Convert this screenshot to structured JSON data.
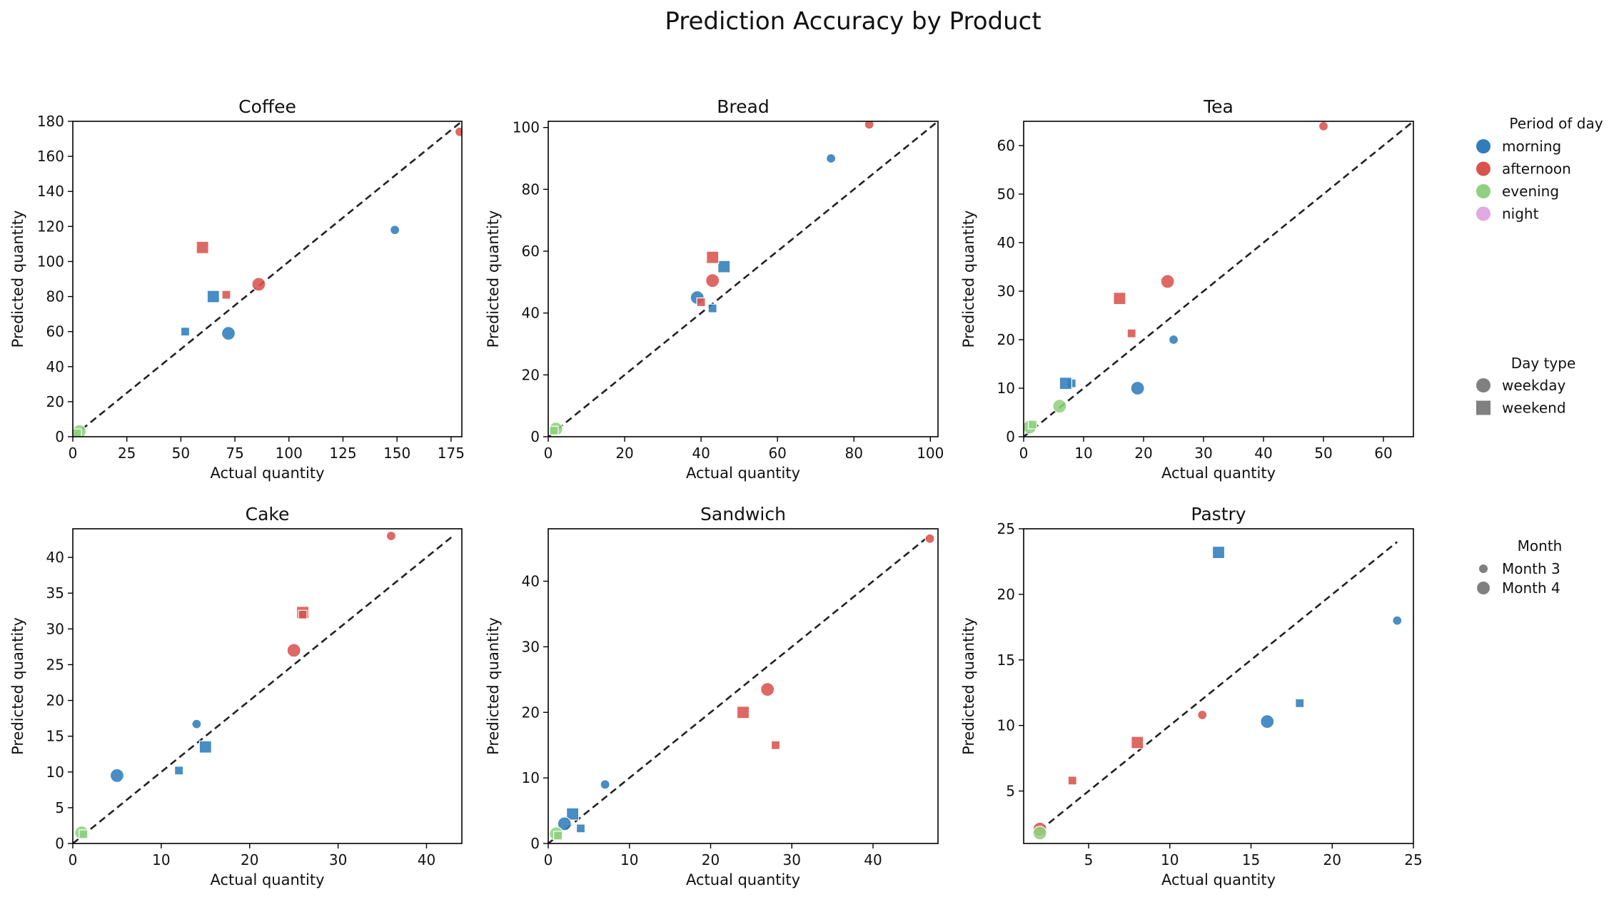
{
  "figure": {
    "title": "Prediction Accuracy by Product"
  },
  "legend": {
    "period": {
      "title": "Period of day",
      "items": [
        {
          "label": "morning",
          "color": "#2f7dbb"
        },
        {
          "label": "afternoon",
          "color": "#d9534f"
        },
        {
          "label": "evening",
          "color": "#8fd17f"
        },
        {
          "label": "night",
          "color": "#e2a9e2"
        }
      ]
    },
    "daytype": {
      "title": "Day type",
      "items": [
        {
          "label": "weekday",
          "marker": "circle"
        },
        {
          "label": "weekend",
          "marker": "square"
        }
      ]
    },
    "month": {
      "title": "Month",
      "items": [
        {
          "label": "Month 3",
          "size": "small"
        },
        {
          "label": "Month 4",
          "size": "large"
        }
      ]
    }
  },
  "chart_data": [
    {
      "type": "scatter",
      "title": "Coffee",
      "xlabel": "Actual quantity",
      "ylabel": "Predicted quantity",
      "xlim": [
        0,
        180
      ],
      "ylim": [
        0,
        180
      ],
      "xticks": [
        0,
        25,
        50,
        75,
        100,
        125,
        150,
        175
      ],
      "yticks": [
        0,
        20,
        40,
        60,
        80,
        100,
        120,
        140,
        160,
        180
      ],
      "reference_line": [
        [
          0,
          0
        ],
        [
          180,
          180
        ]
      ],
      "points": [
        {
          "x": 179,
          "y": 174,
          "period": "afternoon",
          "day": "weekday",
          "month": 3
        },
        {
          "x": 149,
          "y": 118,
          "period": "morning",
          "day": "weekday",
          "month": 3
        },
        {
          "x": 86,
          "y": 87,
          "period": "afternoon",
          "day": "weekday",
          "month": 4
        },
        {
          "x": 72,
          "y": 59,
          "period": "morning",
          "day": "weekday",
          "month": 4
        },
        {
          "x": 71,
          "y": 81,
          "period": "afternoon",
          "day": "weekend",
          "month": 3
        },
        {
          "x": 65,
          "y": 80,
          "period": "morning",
          "day": "weekend",
          "month": 4
        },
        {
          "x": 60,
          "y": 108,
          "period": "afternoon",
          "day": "weekend",
          "month": 4
        },
        {
          "x": 52,
          "y": 60,
          "period": "morning",
          "day": "weekend",
          "month": 3
        },
        {
          "x": 3,
          "y": 3,
          "period": "evening",
          "day": "weekday",
          "month": 4
        },
        {
          "x": 2,
          "y": 2,
          "period": "evening",
          "day": "weekend",
          "month": 3
        }
      ]
    },
    {
      "type": "scatter",
      "title": "Bread",
      "xlabel": "Actual quantity",
      "ylabel": "Predicted quantity",
      "xlim": [
        0,
        102
      ],
      "ylim": [
        0,
        102
      ],
      "xticks": [
        0,
        20,
        40,
        60,
        80,
        100
      ],
      "yticks": [
        0,
        20,
        40,
        60,
        80,
        100
      ],
      "reference_line": [
        [
          0,
          0
        ],
        [
          102,
          102
        ]
      ],
      "points": [
        {
          "x": 84,
          "y": 101,
          "period": "afternoon",
          "day": "weekday",
          "month": 3
        },
        {
          "x": 74,
          "y": 90,
          "period": "morning",
          "day": "weekday",
          "month": 3
        },
        {
          "x": 46,
          "y": 55,
          "period": "morning",
          "day": "weekend",
          "month": 4
        },
        {
          "x": 43,
          "y": 58,
          "period": "afternoon",
          "day": "weekend",
          "month": 4
        },
        {
          "x": 43,
          "y": 50.5,
          "period": "afternoon",
          "day": "weekday",
          "month": 4
        },
        {
          "x": 39,
          "y": 45,
          "period": "morning",
          "day": "weekday",
          "month": 4
        },
        {
          "x": 40,
          "y": 43.5,
          "period": "afternoon",
          "day": "weekend",
          "month": 3
        },
        {
          "x": 43,
          "y": 41.5,
          "period": "morning",
          "day": "weekend",
          "month": 3
        },
        {
          "x": 2,
          "y": 2.5,
          "period": "evening",
          "day": "weekday",
          "month": 4
        },
        {
          "x": 1.5,
          "y": 2,
          "period": "evening",
          "day": "weekend",
          "month": 3
        }
      ]
    },
    {
      "type": "scatter",
      "title": "Tea",
      "xlabel": "Actual quantity",
      "ylabel": "Predicted quantity",
      "xlim": [
        0,
        65
      ],
      "ylim": [
        0,
        65
      ],
      "xticks": [
        0,
        10,
        20,
        30,
        40,
        50,
        60
      ],
      "yticks": [
        0,
        10,
        20,
        30,
        40,
        50,
        60
      ],
      "reference_line": [
        [
          0,
          0
        ],
        [
          65,
          65
        ]
      ],
      "points": [
        {
          "x": 50,
          "y": 64,
          "period": "afternoon",
          "day": "weekday",
          "month": 3
        },
        {
          "x": 24,
          "y": 32,
          "period": "afternoon",
          "day": "weekday",
          "month": 4
        },
        {
          "x": 16,
          "y": 28.5,
          "period": "afternoon",
          "day": "weekend",
          "month": 4
        },
        {
          "x": 18,
          "y": 21.3,
          "period": "afternoon",
          "day": "weekend",
          "month": 3
        },
        {
          "x": 25,
          "y": 20,
          "period": "morning",
          "day": "weekday",
          "month": 3
        },
        {
          "x": 8,
          "y": 11,
          "period": "morning",
          "day": "weekend",
          "month": 3
        },
        {
          "x": 7,
          "y": 11,
          "period": "morning",
          "day": "weekend",
          "month": 4
        },
        {
          "x": 19,
          "y": 10,
          "period": "morning",
          "day": "weekday",
          "month": 4
        },
        {
          "x": 6,
          "y": 6.3,
          "period": "evening",
          "day": "weekday",
          "month": 4
        },
        {
          "x": 1,
          "y": 2,
          "period": "evening",
          "day": "weekday",
          "month": 4
        },
        {
          "x": 1.5,
          "y": 2.5,
          "period": "evening",
          "day": "weekend",
          "month": 3
        }
      ]
    },
    {
      "type": "scatter",
      "title": "Cake",
      "xlabel": "Actual quantity",
      "ylabel": "Predicted quantity",
      "xlim": [
        0,
        44
      ],
      "ylim": [
        0,
        44
      ],
      "xticks": [
        0,
        10,
        20,
        30,
        40
      ],
      "yticks": [
        0,
        5,
        10,
        15,
        20,
        25,
        30,
        35,
        40
      ],
      "reference_line": [
        [
          0,
          0
        ],
        [
          43,
          43
        ]
      ],
      "points": [
        {
          "x": 36,
          "y": 43,
          "period": "afternoon",
          "day": "weekday",
          "month": 3
        },
        {
          "x": 26,
          "y": 32.3,
          "period": "afternoon",
          "day": "weekend",
          "month": 4
        },
        {
          "x": 26,
          "y": 32,
          "period": "afternoon",
          "day": "weekend",
          "month": 3
        },
        {
          "x": 25,
          "y": 27,
          "period": "afternoon",
          "day": "weekday",
          "month": 4
        },
        {
          "x": 14,
          "y": 16.7,
          "period": "morning",
          "day": "weekday",
          "month": 3
        },
        {
          "x": 15,
          "y": 13.5,
          "period": "morning",
          "day": "weekend",
          "month": 4
        },
        {
          "x": 12,
          "y": 10.2,
          "period": "morning",
          "day": "weekend",
          "month": 3
        },
        {
          "x": 5,
          "y": 9.5,
          "period": "morning",
          "day": "weekday",
          "month": 4
        },
        {
          "x": 1,
          "y": 1.5,
          "period": "evening",
          "day": "weekday",
          "month": 4
        },
        {
          "x": 1.2,
          "y": 1.3,
          "period": "evening",
          "day": "weekend",
          "month": 3
        }
      ]
    },
    {
      "type": "scatter",
      "title": "Sandwich",
      "xlabel": "Actual quantity",
      "ylabel": "Predicted quantity",
      "xlim": [
        0,
        48
      ],
      "ylim": [
        0,
        48
      ],
      "xticks": [
        0,
        10,
        20,
        30,
        40
      ],
      "yticks": [
        0,
        10,
        20,
        30,
        40
      ],
      "reference_line": [
        [
          0,
          0
        ],
        [
          47,
          47
        ]
      ],
      "points": [
        {
          "x": 47,
          "y": 46.5,
          "period": "afternoon",
          "day": "weekday",
          "month": 3
        },
        {
          "x": 27,
          "y": 23.5,
          "period": "afternoon",
          "day": "weekday",
          "month": 4
        },
        {
          "x": 24,
          "y": 20,
          "period": "afternoon",
          "day": "weekend",
          "month": 4
        },
        {
          "x": 28,
          "y": 15,
          "period": "afternoon",
          "day": "weekend",
          "month": 3
        },
        {
          "x": 7,
          "y": 9,
          "period": "morning",
          "day": "weekday",
          "month": 3
        },
        {
          "x": 3,
          "y": 4.5,
          "period": "morning",
          "day": "weekend",
          "month": 4
        },
        {
          "x": 2,
          "y": 3,
          "period": "morning",
          "day": "weekday",
          "month": 4
        },
        {
          "x": 4,
          "y": 2.3,
          "period": "morning",
          "day": "weekend",
          "month": 3
        },
        {
          "x": 1,
          "y": 1.5,
          "period": "evening",
          "day": "weekday",
          "month": 4
        },
        {
          "x": 1.2,
          "y": 1.2,
          "period": "evening",
          "day": "weekend",
          "month": 3
        }
      ]
    },
    {
      "type": "scatter",
      "title": "Pastry",
      "xlabel": "Actual quantity",
      "ylabel": "Predicted quantity",
      "xlim": [
        1,
        25
      ],
      "ylim": [
        1,
        25
      ],
      "xticks": [
        5,
        10,
        15,
        20,
        25
      ],
      "yticks": [
        5,
        10,
        15,
        20,
        25
      ],
      "reference_line": [
        [
          2,
          2
        ],
        [
          24,
          24
        ]
      ],
      "points": [
        {
          "x": 13,
          "y": 23.2,
          "period": "morning",
          "day": "weekend",
          "month": 4
        },
        {
          "x": 24,
          "y": 18,
          "period": "morning",
          "day": "weekday",
          "month": 3
        },
        {
          "x": 18,
          "y": 11.7,
          "period": "morning",
          "day": "weekend",
          "month": 3
        },
        {
          "x": 12,
          "y": 10.8,
          "period": "afternoon",
          "day": "weekday",
          "month": 3
        },
        {
          "x": 16,
          "y": 10.3,
          "period": "morning",
          "day": "weekday",
          "month": 4
        },
        {
          "x": 8,
          "y": 8.7,
          "period": "afternoon",
          "day": "weekend",
          "month": 4
        },
        {
          "x": 4,
          "y": 5.8,
          "period": "afternoon",
          "day": "weekend",
          "month": 3
        },
        {
          "x": 2,
          "y": 2.1,
          "period": "afternoon",
          "day": "weekday",
          "month": 4
        },
        {
          "x": 2,
          "y": 1.8,
          "period": "evening",
          "day": "weekday",
          "month": 4
        }
      ]
    }
  ]
}
